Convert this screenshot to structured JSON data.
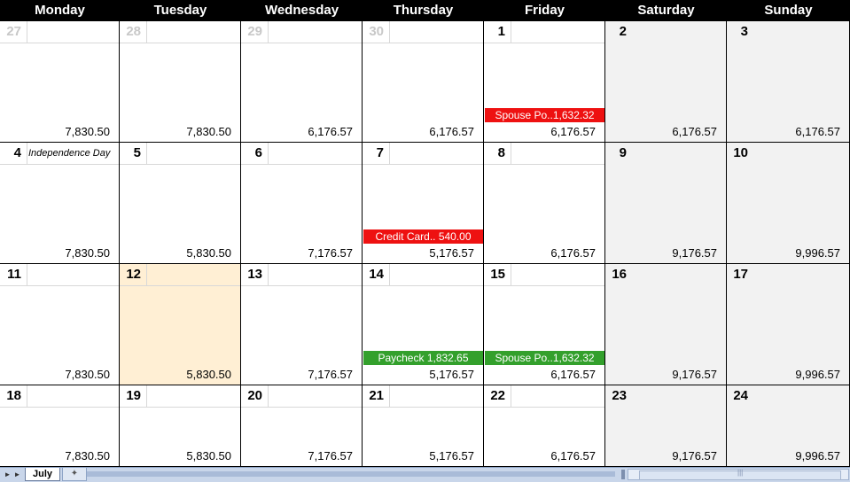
{
  "weekdays": [
    "Monday",
    "Tuesday",
    "Wednesday",
    "Thursday",
    "Friday",
    "Saturday",
    "Sunday"
  ],
  "weeks": [
    [
      {
        "day": "27",
        "other": true,
        "balance": "7,830.50"
      },
      {
        "day": "28",
        "other": true,
        "balance": "7,830.50"
      },
      {
        "day": "29",
        "other": true,
        "balance": "6,176.57"
      },
      {
        "day": "30",
        "other": true,
        "balance": "6,176.57"
      },
      {
        "day": "1",
        "balance": "6,176.57",
        "txns": [
          {
            "label": "Spouse Po..1,632.32",
            "kind": "expense"
          }
        ]
      },
      {
        "day": "2",
        "weekend": true,
        "balance": "6,176.57"
      },
      {
        "day": "3",
        "weekend": true,
        "balance": "6,176.57"
      }
    ],
    [
      {
        "day": "4",
        "holiday": "Independence Day",
        "balance": "7,830.50"
      },
      {
        "day": "5",
        "balance": "5,830.50"
      },
      {
        "day": "6",
        "balance": "7,176.57"
      },
      {
        "day": "7",
        "balance": "5,176.57",
        "txns": [
          {
            "label": "Credit Card.. 540.00",
            "kind": "expense"
          }
        ]
      },
      {
        "day": "8",
        "balance": "6,176.57"
      },
      {
        "day": "9",
        "weekend": true,
        "balance": "9,176.57"
      },
      {
        "day": "10",
        "weekend": true,
        "balance": "9,996.57"
      }
    ],
    [
      {
        "day": "11",
        "balance": "7,830.50"
      },
      {
        "day": "12",
        "today": true,
        "balance": "5,830.50"
      },
      {
        "day": "13",
        "balance": "7,176.57"
      },
      {
        "day": "14",
        "balance": "5,176.57",
        "txns": [
          {
            "label": "Paycheck  1,832.65",
            "kind": "income"
          }
        ]
      },
      {
        "day": "15",
        "balance": "6,176.57",
        "txns": [
          {
            "label": "Spouse Po..1,632.32",
            "kind": "income"
          }
        ]
      },
      {
        "day": "16",
        "weekend": true,
        "balance": "9,176.57"
      },
      {
        "day": "17",
        "weekend": true,
        "balance": "9,996.57"
      }
    ],
    [
      {
        "day": "18",
        "balance": "7,830.50"
      },
      {
        "day": "19",
        "balance": "5,830.50"
      },
      {
        "day": "20",
        "balance": "7,176.57"
      },
      {
        "day": "21",
        "balance": "5,176.57"
      },
      {
        "day": "22",
        "balance": "6,176.57"
      },
      {
        "day": "23",
        "weekend": true,
        "balance": "9,176.57"
      },
      {
        "day": "24",
        "weekend": true,
        "balance": "9,996.57"
      }
    ]
  ],
  "colors": {
    "expense": "#ee1111",
    "income": "#33a02c",
    "today": "#ffefd4",
    "weekend": "#f2f2f2",
    "header": "#000000"
  },
  "tabbar": {
    "sheet_tab": "July",
    "first_icon": "first-sheet-icon",
    "prev_icon": "prev-sheet-icon",
    "new_sheet_icon": "new-sheet-icon"
  }
}
